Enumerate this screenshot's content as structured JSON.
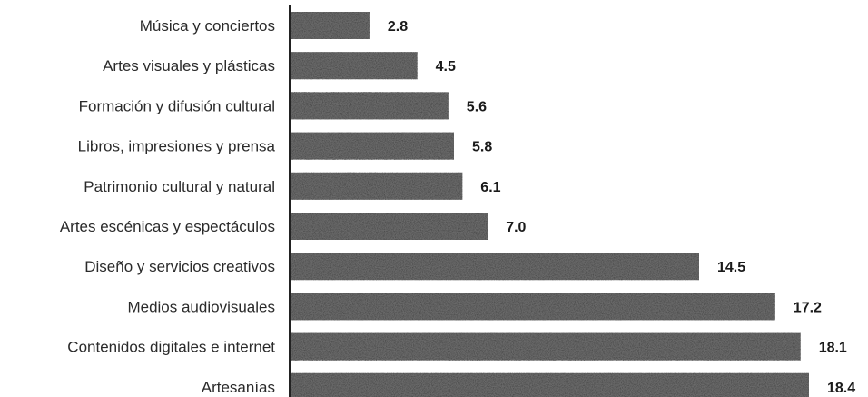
{
  "chart_data": {
    "type": "bar",
    "orientation": "horizontal",
    "categories": [
      "Música y conciertos",
      "Artes visuales y plásticas",
      "Formación y difusión cultural",
      "Libros, impresiones y prensa",
      "Patrimonio cultural y natural",
      "Artes escénicas y espectáculos",
      "Diseño y servicios creativos",
      "Medios audiovisuales",
      "Contenidos digitales e internet",
      "Artesanías"
    ],
    "values": [
      2.8,
      4.5,
      5.6,
      5.8,
      6.1,
      7.0,
      14.5,
      17.2,
      18.1,
      18.4
    ],
    "value_labels": [
      "2.8",
      "4.5",
      "5.6",
      "5.8",
      "6.1",
      "7.0",
      "14.5",
      "17.2",
      "18.1",
      "18.4"
    ],
    "title": "",
    "xlabel": "",
    "ylabel": "",
    "xlim": [
      0,
      18.4
    ],
    "grid": false,
    "legend": "none",
    "bar_color": "#6b6b6b",
    "axis_color": "#222222"
  }
}
